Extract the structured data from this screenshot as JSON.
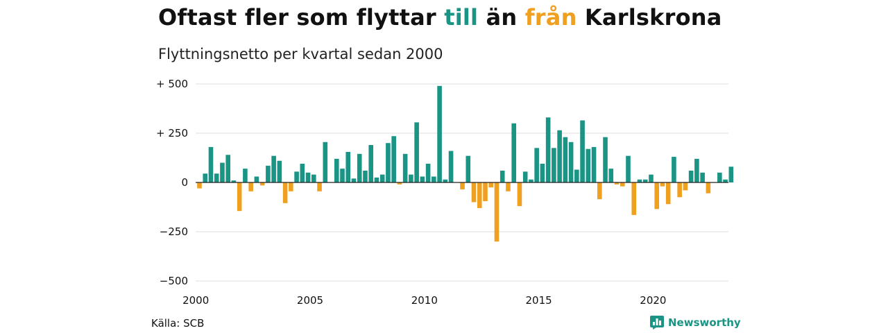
{
  "header": {
    "title_pre": "Oftast fler som flyttar ",
    "title_till": "till",
    "title_mid": " än ",
    "title_fran": "från",
    "title_post": " Karlskrona",
    "subtitle": "Flyttningsnetto per kvartal sedan 2000"
  },
  "footer": {
    "source": "Källa: SCB",
    "brand": "Newsworthy"
  },
  "colors": {
    "positive": "#1a9485",
    "negative": "#f0a020",
    "grid": "#dddddd",
    "zero_line": "#222222"
  },
  "chart_data": {
    "type": "bar",
    "title": "Oftast fler som flyttar till än från Karlskrona",
    "subtitle": "Flyttningsnetto per kvartal sedan 2000",
    "ylim": [
      -500,
      500
    ],
    "y_ticks": [
      {
        "value": 500,
        "label": "+ 500"
      },
      {
        "value": 250,
        "label": "+ 250"
      },
      {
        "value": 0,
        "label": "0"
      },
      {
        "value": -250,
        "label": "−250"
      },
      {
        "value": -500,
        "label": "−500"
      }
    ],
    "x_ticks": [
      {
        "year": 2000,
        "label": "2000"
      },
      {
        "year": 2005,
        "label": "2005"
      },
      {
        "year": 2010,
        "label": "2010"
      },
      {
        "year": 2015,
        "label": "2015"
      },
      {
        "year": 2020,
        "label": "2020"
      }
    ],
    "grid": true,
    "start": "2000 Q1",
    "values": [
      -30,
      45,
      180,
      45,
      100,
      140,
      10,
      -145,
      70,
      -45,
      30,
      -15,
      85,
      135,
      110,
      -105,
      -45,
      55,
      95,
      50,
      40,
      -45,
      205,
      0,
      120,
      70,
      155,
      20,
      145,
      60,
      190,
      25,
      40,
      200,
      235,
      -10,
      145,
      40,
      305,
      30,
      95,
      30,
      490,
      15,
      160,
      0,
      -35,
      135,
      -100,
      -130,
      -95,
      -25,
      -300,
      60,
      -45,
      300,
      -120,
      55,
      15,
      175,
      95,
      330,
      175,
      265,
      230,
      205,
      65,
      315,
      170,
      180,
      -85,
      230,
      70,
      -10,
      -20,
      135,
      -165,
      15,
      15,
      40,
      -135,
      -20,
      -110,
      130,
      -75,
      -40,
      60,
      120,
      50,
      -55,
      0,
      50,
      15,
      80
    ]
  }
}
